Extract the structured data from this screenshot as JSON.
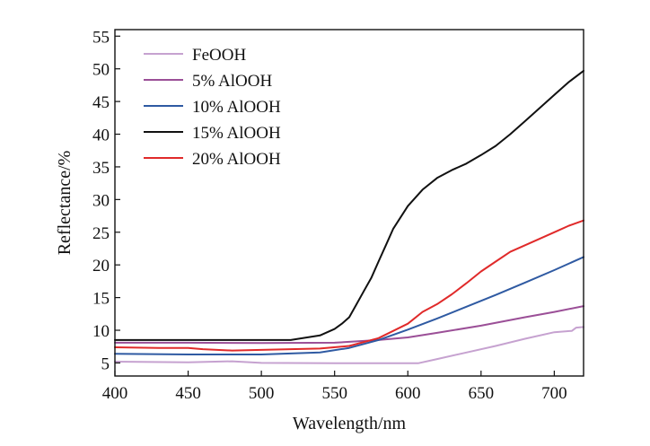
{
  "chart_data": {
    "type": "line",
    "xlabel": "Wavelength/nm",
    "ylabel": "Reflectance/%",
    "xlim": [
      400,
      720
    ],
    "ylim": [
      3,
      56
    ],
    "xticks": [
      400,
      450,
      500,
      550,
      600,
      650,
      700
    ],
    "yticks": [
      5,
      10,
      15,
      20,
      25,
      30,
      35,
      40,
      45,
      50,
      55
    ],
    "grid": false,
    "legend_position": "top-left",
    "series": [
      {
        "name": "FeOOH",
        "color": "#c6a2d0",
        "x": [
          400,
          450,
          480,
          500,
          550,
          600,
          607,
          620,
          640,
          660,
          680,
          700,
          712,
          715,
          720
        ],
        "y": [
          5.2,
          5.1,
          5.25,
          5.0,
          4.95,
          4.95,
          4.95,
          5.6,
          6.6,
          7.6,
          8.7,
          9.7,
          9.9,
          10.4,
          10.5
        ]
      },
      {
        "name": "5% AlOOH",
        "color": "#9b4f97",
        "x": [
          400,
          450,
          500,
          550,
          580,
          600,
          620,
          650,
          680,
          700,
          720
        ],
        "y": [
          8.1,
          8.1,
          8.05,
          8.1,
          8.5,
          8.9,
          9.6,
          10.7,
          12.0,
          12.8,
          13.7
        ]
      },
      {
        "name": "10% AlOOH",
        "color": "#2f5aa2",
        "x": [
          400,
          450,
          500,
          540,
          560,
          580,
          600,
          620,
          640,
          660,
          680,
          700,
          720
        ],
        "y": [
          6.4,
          6.3,
          6.3,
          6.6,
          7.3,
          8.5,
          10.1,
          11.8,
          13.6,
          15.4,
          17.3,
          19.2,
          21.2
        ]
      },
      {
        "name": "15% AlOOH",
        "color": "#111111",
        "x": [
          400,
          450,
          500,
          520,
          540,
          550,
          555,
          560,
          565,
          570,
          575,
          580,
          585,
          590,
          600,
          610,
          620,
          630,
          640,
          650,
          660,
          670,
          680,
          690,
          700,
          710,
          720
        ],
        "y": [
          8.5,
          8.5,
          8.5,
          8.5,
          9.2,
          10.2,
          11.0,
          12.0,
          14.0,
          16.0,
          18.0,
          20.5,
          23.0,
          25.5,
          29.0,
          31.5,
          33.3,
          34.5,
          35.5,
          36.8,
          38.2,
          40.0,
          42.0,
          44.0,
          46.0,
          48.0,
          49.7
        ]
      },
      {
        "name": "20% AlOOH",
        "color": "#e02a2a",
        "x": [
          400,
          430,
          450,
          460,
          480,
          500,
          520,
          540,
          560,
          580,
          600,
          610,
          620,
          630,
          640,
          650,
          660,
          670,
          680,
          690,
          700,
          710,
          720
        ],
        "y": [
          7.4,
          7.3,
          7.3,
          7.1,
          6.9,
          7.0,
          7.1,
          7.2,
          7.6,
          8.8,
          11.0,
          12.8,
          14.0,
          15.5,
          17.2,
          19.0,
          20.5,
          22.0,
          23.0,
          24.0,
          25.0,
          26.0,
          26.8
        ]
      }
    ]
  }
}
